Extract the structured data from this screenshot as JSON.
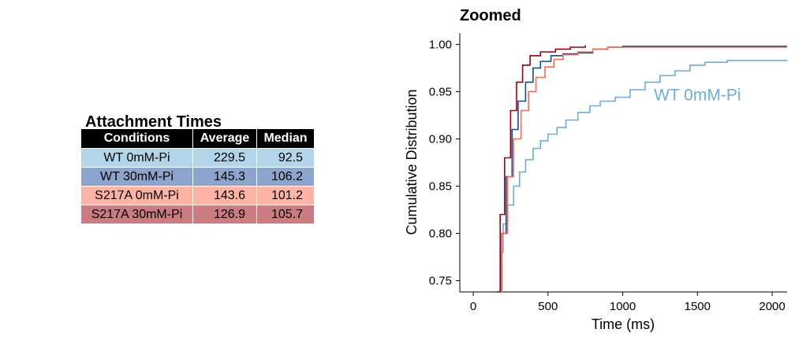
{
  "table": {
    "title": "Attachment Times",
    "headers": [
      "Conditions",
      "Average",
      "Median"
    ],
    "rows": [
      {
        "condition": "WT 0mM-Pi",
        "average": "229.5",
        "median": "92.5",
        "color": "#B2D5EA"
      },
      {
        "condition": "WT 30mM-Pi",
        "average": "145.3",
        "median": "106.2",
        "color": "#8DA5CC"
      },
      {
        "condition": "S217A 0mM-Pi",
        "average": "143.6",
        "median": "101.2",
        "color": "#FDB4A4"
      },
      {
        "condition": "S217A 30mM-Pi",
        "average": "126.9",
        "median": "105.7",
        "color": "#CA7C80"
      }
    ]
  },
  "chart_data": {
    "type": "line",
    "title": "Zoomed",
    "xlabel": "Time (ms)",
    "ylabel": "Cumulative Distribution",
    "xlim": [
      -90,
      2100
    ],
    "ylim": [
      0.738,
      1.012
    ],
    "xticks": [
      0,
      500,
      1000,
      1500,
      2000
    ],
    "yticks": [
      0.75,
      0.8,
      0.85,
      0.9,
      0.95,
      1.0
    ],
    "ytick_labels": [
      "0.75",
      "0.80",
      "0.85",
      "0.90",
      "0.95",
      "1.00"
    ],
    "grid": false,
    "annotation": {
      "text": "WT 0mM-Pi",
      "x": 1500,
      "y": 0.9465,
      "color": "#6BAED6"
    },
    "series": [
      {
        "color": "#6BAED6",
        "points": [
          [
            170,
            0.738
          ],
          [
            185,
            0.78
          ],
          [
            200,
            0.81
          ],
          [
            230,
            0.83
          ],
          [
            270,
            0.85
          ],
          [
            310,
            0.865
          ],
          [
            350,
            0.878
          ],
          [
            400,
            0.89
          ],
          [
            450,
            0.898
          ],
          [
            500,
            0.905
          ],
          [
            560,
            0.912
          ],
          [
            620,
            0.92
          ],
          [
            700,
            0.928
          ],
          [
            780,
            0.935
          ],
          [
            850,
            0.94
          ],
          [
            950,
            0.944
          ],
          [
            1050,
            0.952
          ],
          [
            1150,
            0.96
          ],
          [
            1250,
            0.967
          ],
          [
            1350,
            0.972
          ],
          [
            1450,
            0.978
          ],
          [
            1550,
            0.981
          ],
          [
            1700,
            0.983
          ],
          [
            2100,
            0.983
          ]
        ]
      },
      {
        "color": "#08519C",
        "points": [
          [
            160,
            0.738
          ],
          [
            190,
            0.8
          ],
          [
            220,
            0.86
          ],
          [
            260,
            0.91
          ],
          [
            300,
            0.94
          ],
          [
            350,
            0.96
          ],
          [
            400,
            0.975
          ],
          [
            450,
            0.982
          ],
          [
            520,
            0.988
          ],
          [
            600,
            0.99
          ],
          [
            700,
            0.991
          ],
          [
            800,
            0.995
          ],
          [
            900,
            0.997
          ],
          [
            1000,
            0.998
          ],
          [
            2100,
            0.998
          ]
        ]
      },
      {
        "color": "#FB6A4A",
        "points": [
          [
            155,
            0.738
          ],
          [
            190,
            0.8
          ],
          [
            230,
            0.86
          ],
          [
            270,
            0.9
          ],
          [
            320,
            0.93
          ],
          [
            370,
            0.95
          ],
          [
            420,
            0.965
          ],
          [
            480,
            0.976
          ],
          [
            540,
            0.984
          ],
          [
            600,
            0.989
          ],
          [
            700,
            0.992
          ],
          [
            800,
            0.995
          ],
          [
            900,
            0.997
          ],
          [
            1000,
            0.997
          ],
          [
            2100,
            0.997
          ]
        ]
      },
      {
        "color": "#99000D",
        "points": [
          [
            150,
            0.738
          ],
          [
            180,
            0.82
          ],
          [
            210,
            0.88
          ],
          [
            250,
            0.93
          ],
          [
            290,
            0.96
          ],
          [
            330,
            0.978
          ],
          [
            380,
            0.988
          ],
          [
            450,
            0.992
          ],
          [
            550,
            0.995
          ],
          [
            650,
            0.997
          ],
          [
            750,
            0.999
          ]
        ]
      }
    ]
  }
}
